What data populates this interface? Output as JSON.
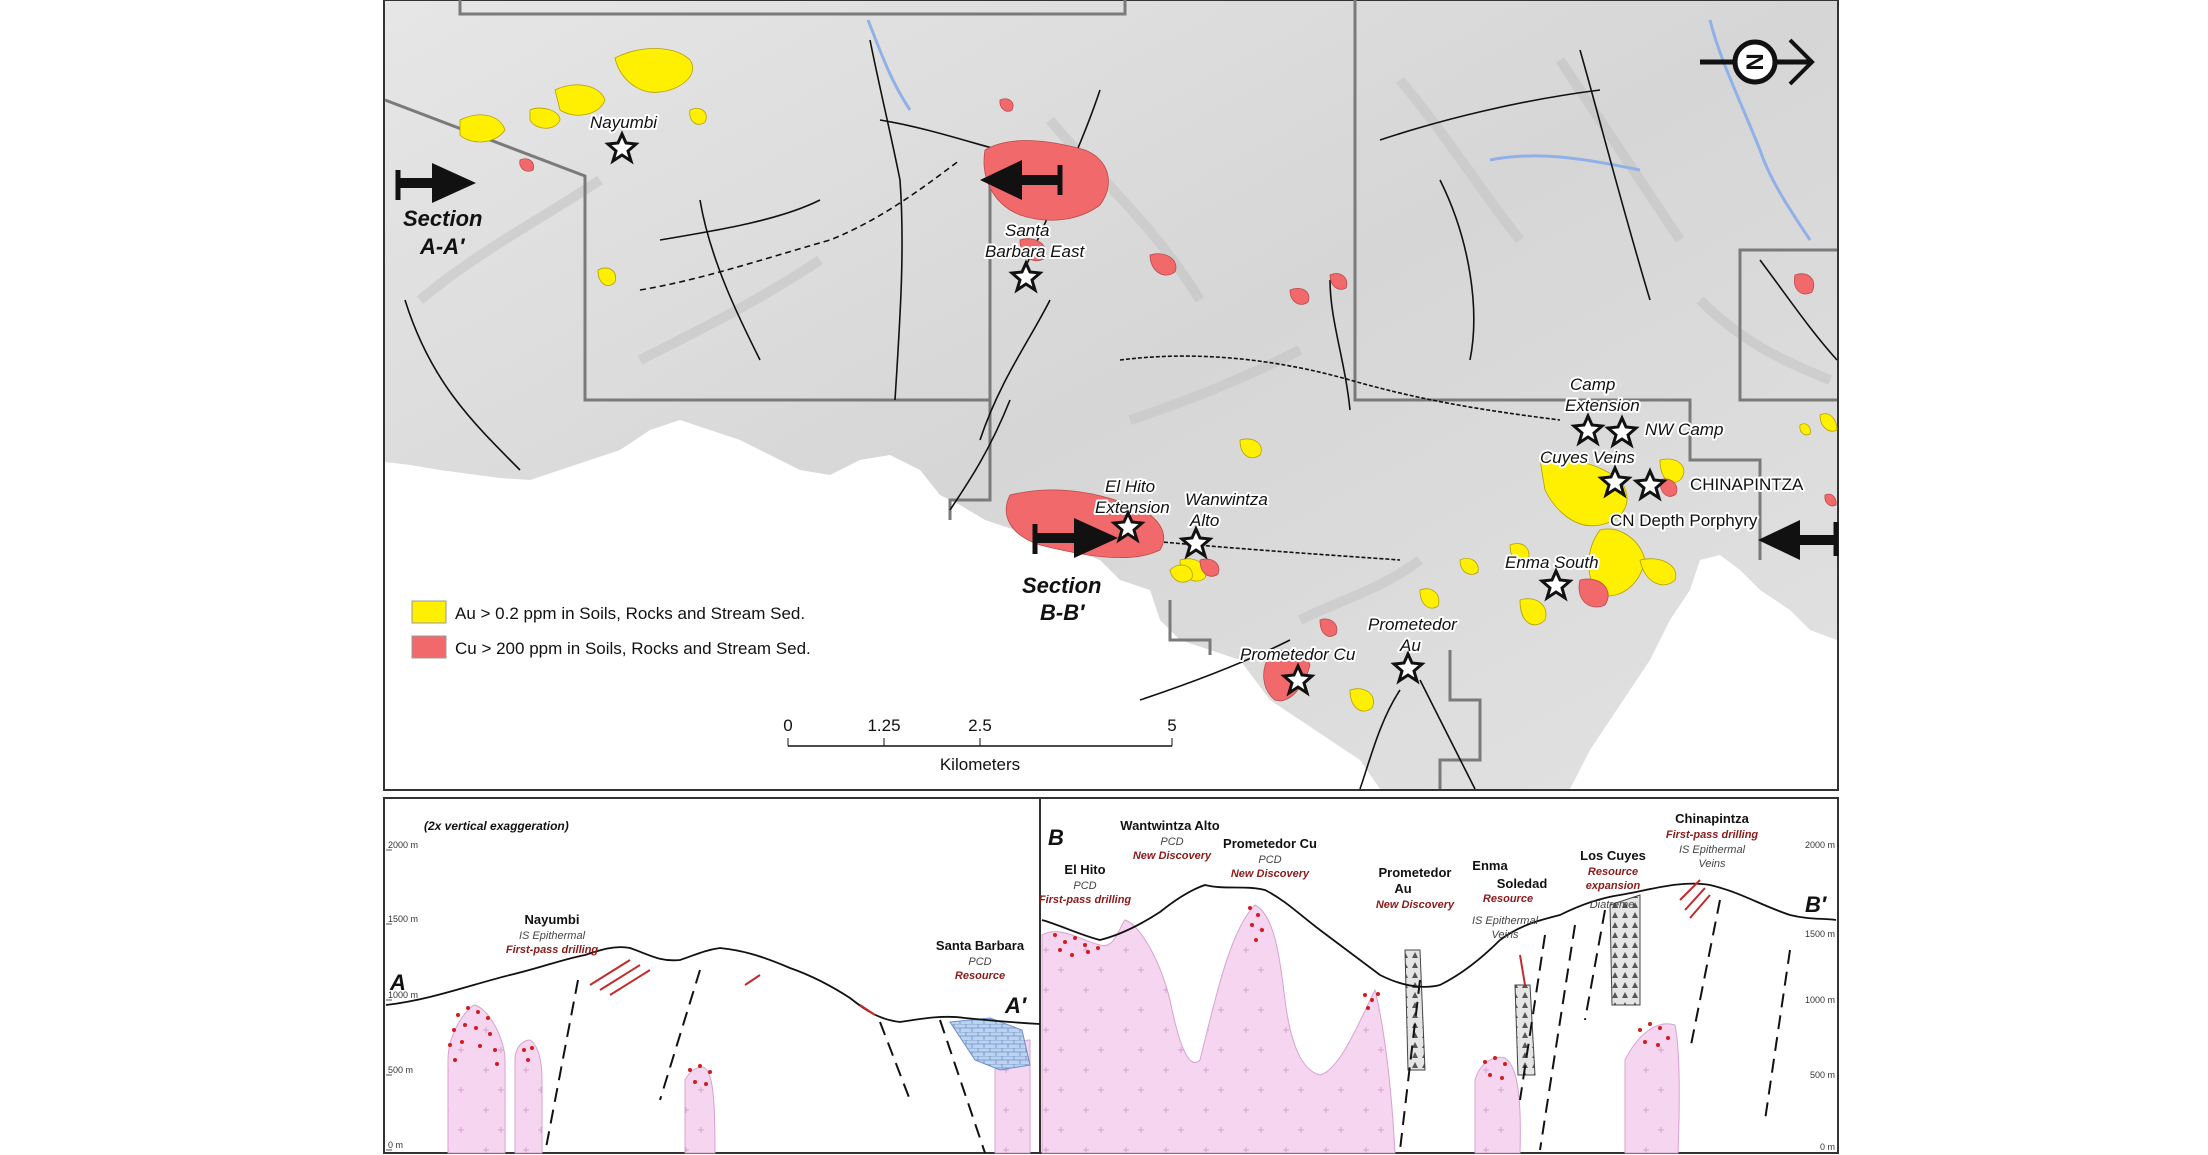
{
  "map": {
    "legend": [
      {
        "label": "Au > 0.2 ppm in Soils, Rocks and Stream Sed.",
        "color": "#ffef00"
      },
      {
        "label": "Cu > 200 ppm in Soils, Rocks and Stream Sed.",
        "color": "#f2696b"
      }
    ],
    "scalebar": {
      "ticks": [
        "0",
        "1.25",
        "2.5",
        "5"
      ],
      "unit": "Kilometers"
    },
    "north_arrow": "N",
    "sections": [
      {
        "name": "Section",
        "label": "A-A′"
      },
      {
        "name": "Section",
        "label": "B-B′"
      }
    ],
    "prospects": [
      "Nayumbi",
      "Santa",
      "Barbara East",
      "El Hito",
      "Extension",
      "Wanwintza",
      "Alto",
      "Camp",
      "Extension",
      "NW Camp",
      "Cuyes Veins",
      "CHINAPINTZA",
      "CN Depth Porphyry",
      "Enma South",
      "Prometedor",
      "Au",
      "Prometedor Cu"
    ],
    "colors": {
      "au": "#ffef00",
      "cu": "#f2696b",
      "boundary": "#7a7a7a",
      "river": "#8fb1e8",
      "terrain": "#d9d9d9"
    }
  },
  "section_panel": {
    "exaggeration": "(2x vertical exaggeration)",
    "left_axis": [
      "2000 m",
      "1500 m",
      "1000 m",
      "500 m",
      "0 m"
    ],
    "right_axis": [
      "2000 m",
      "1500 m",
      "1000 m",
      "500 m",
      "0 m"
    ],
    "ends": {
      "a": "A",
      "a2": "A′",
      "b": "B",
      "b2": "B′"
    },
    "annotations": [
      {
        "name": "Nayumbi",
        "sub": "IS Epithermal",
        "red": "First-pass drilling"
      },
      {
        "name": "Santa Barbara",
        "sub": "PCD",
        "red": "Resource"
      },
      {
        "name": "Wantwintza Alto",
        "sub": "PCD",
        "red": "New Discovery"
      },
      {
        "name": "El Hito",
        "sub": "PCD",
        "red": "First-pass drilling"
      },
      {
        "name": "Prometedor Cu",
        "sub": "PCD",
        "red": "New Discovery"
      },
      {
        "name": "Prometedor",
        "name2": "Au",
        "red": "New Discovery"
      },
      {
        "name": "Enma",
        "name2": "Soledad",
        "red": "Resource"
      },
      {
        "name": "Los Cuyes",
        "red": "Resource",
        "red2": "expansion"
      },
      {
        "name": "Chinapintza",
        "red": "First-pass drilling",
        "sub": "IS Epithermal",
        "sub2": "Veins"
      },
      {
        "sub": "IS Epithermal",
        "sub2": "Veins"
      },
      {
        "sub": "Diatreme"
      }
    ]
  }
}
